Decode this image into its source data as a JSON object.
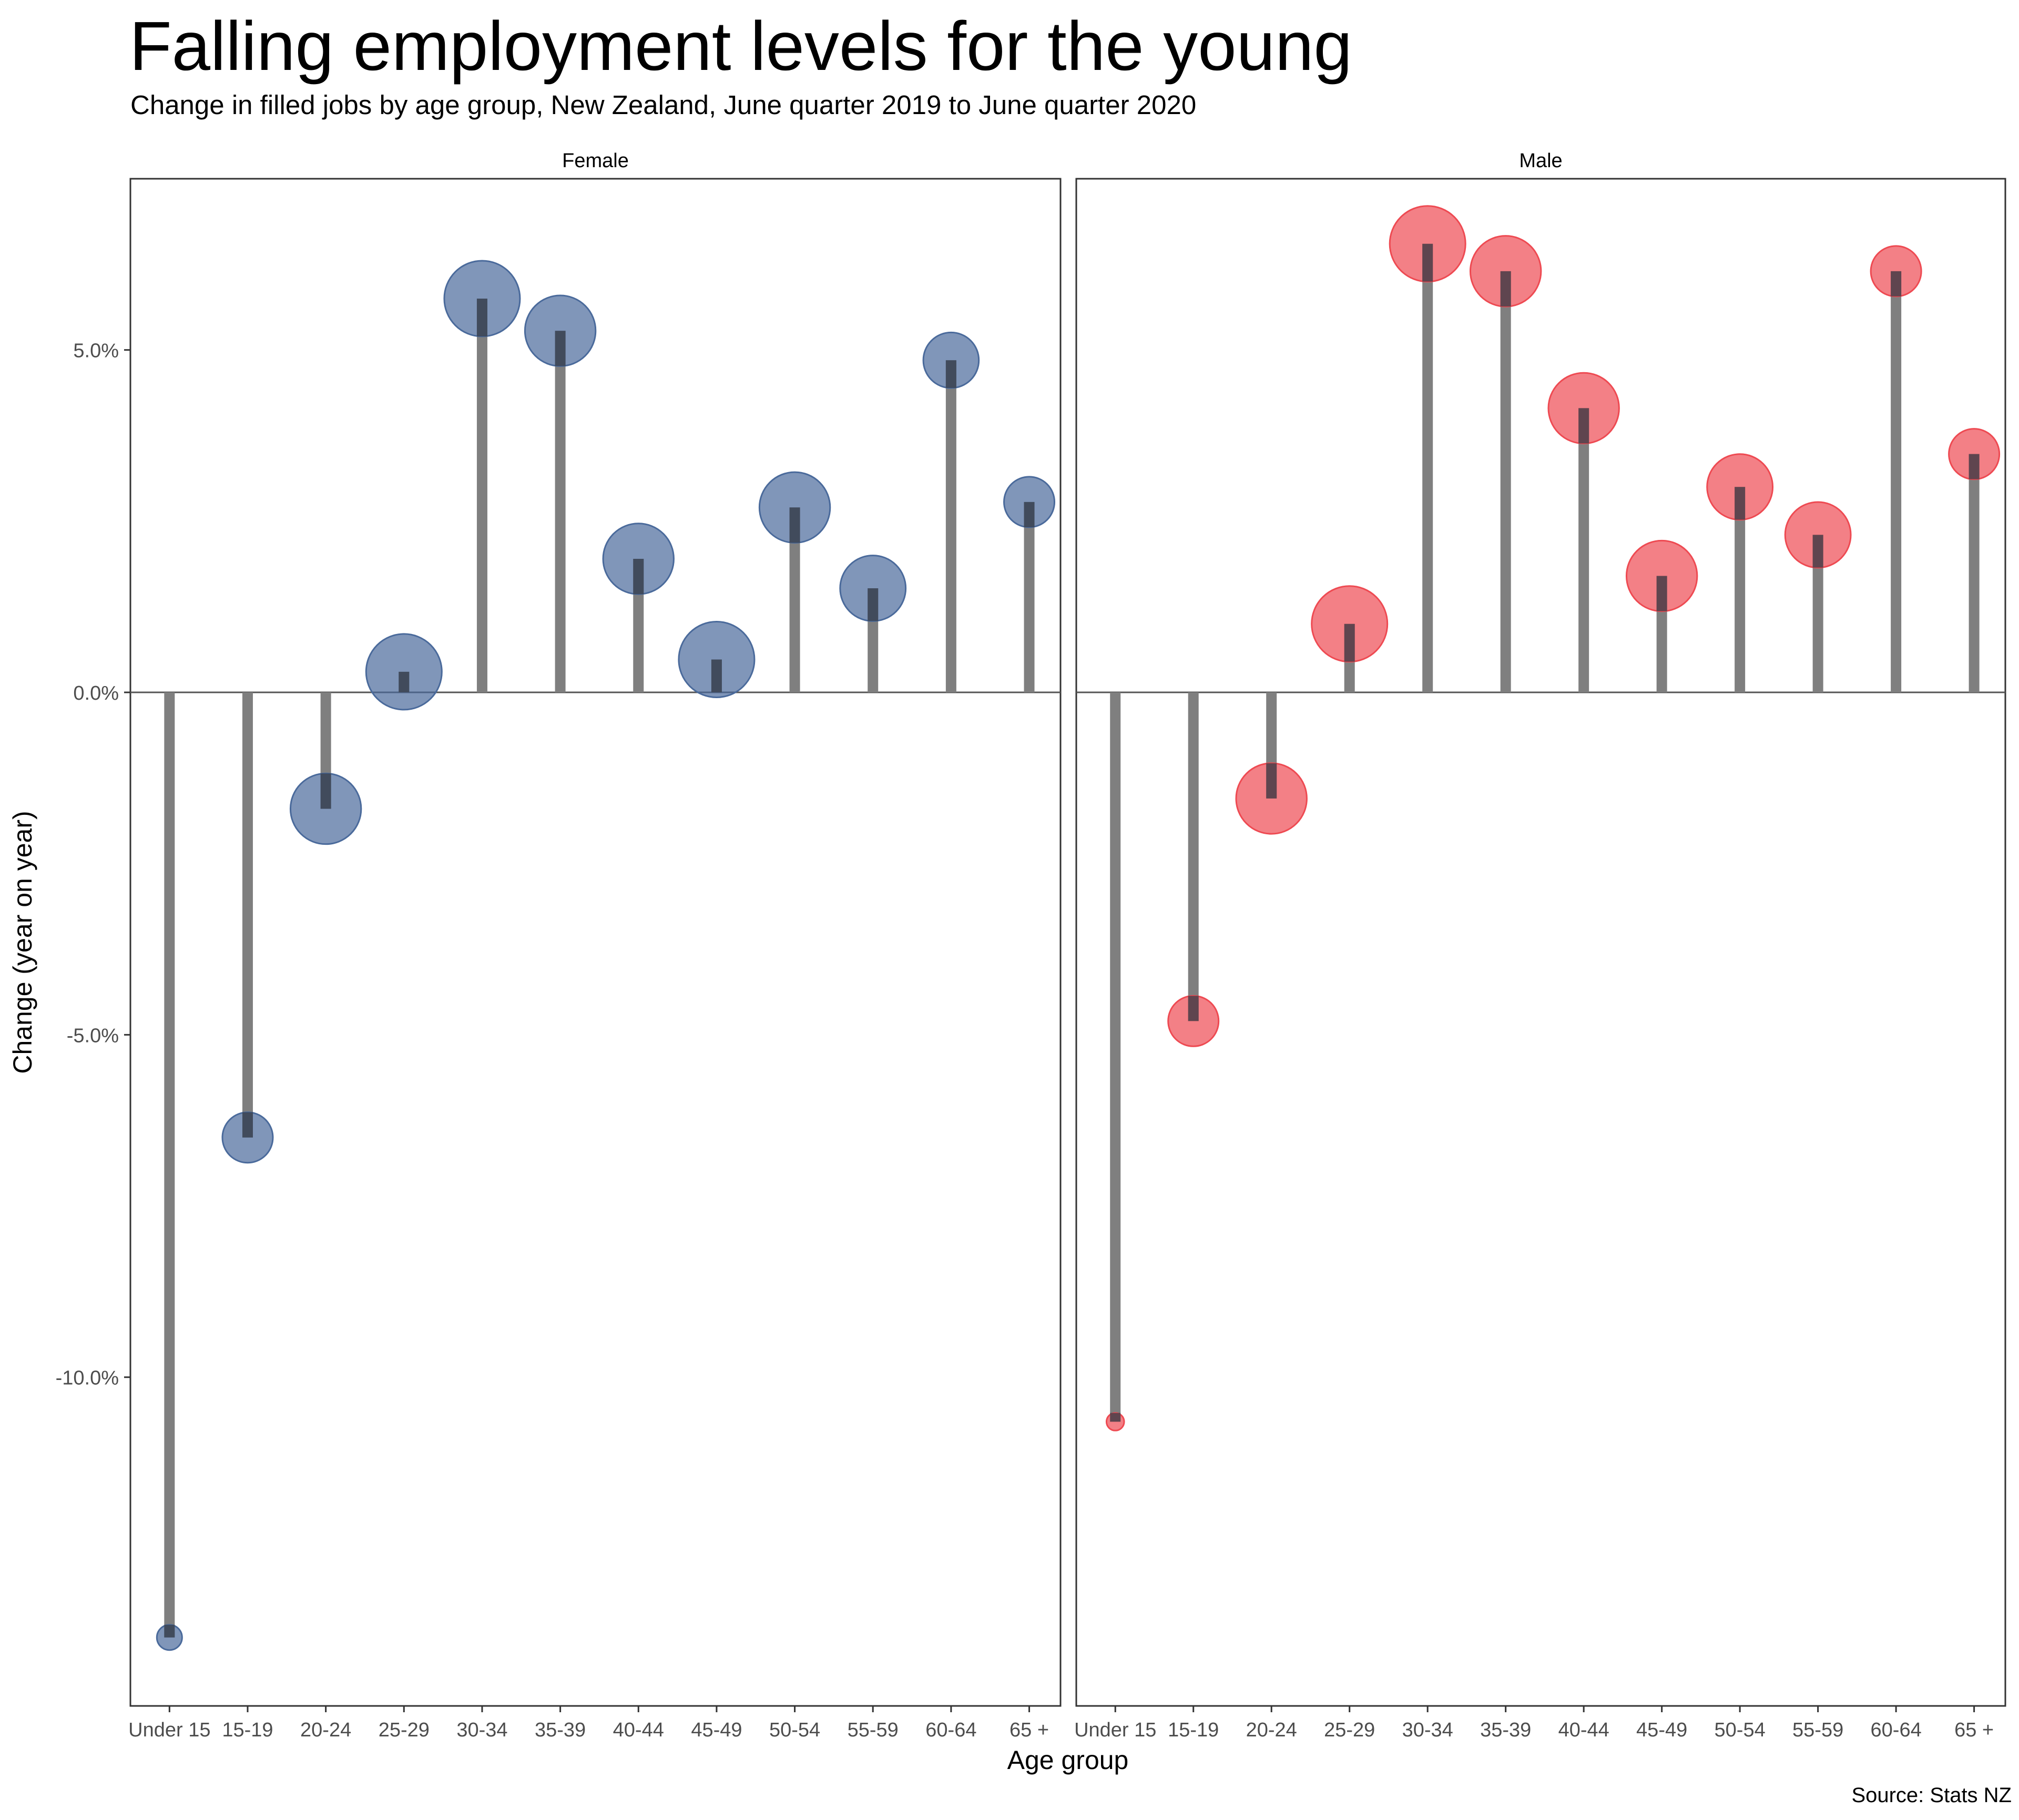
{
  "chart_data": {
    "type": "lollipop",
    "title": "Falling employment levels for the young",
    "subtitle": "Change in filled jobs by age group, New Zealand, June quarter 2019 to June quarter 2020",
    "xlabel": "Age group",
    "ylabel": "Change (year on year)",
    "caption": "Source: Stats NZ",
    "ylim": [
      -14.8,
      7.5
    ],
    "yticks": [
      5,
      0,
      -5,
      -10
    ],
    "ytick_labels": [
      "5.0%",
      "0.0%",
      "-5.0%",
      "-10.0%"
    ],
    "grid": false,
    "categories": [
      "Under 15",
      "15-19",
      "20-24",
      "25-29",
      "30-34",
      "35-39",
      "40-44",
      "45-49",
      "50-54",
      "55-59",
      "60-64",
      "65 +"
    ],
    "panels": [
      {
        "name": "Female",
        "color": "#4a6a9b",
        "values": [
          -13.8,
          -6.5,
          -1.7,
          0.3,
          5.75,
          5.28,
          1.95,
          0.48,
          2.7,
          1.52,
          4.85,
          2.78
        ],
        "point_size": [
          0.5,
          1.0,
          1.4,
          1.5,
          1.5,
          1.4,
          1.4,
          1.5,
          1.4,
          1.3,
          1.1,
          1.0
        ]
      },
      {
        "name": "Male",
        "color": "#ee4a52",
        "values": [
          -10.65,
          -4.8,
          -1.55,
          1.0,
          6.55,
          6.15,
          4.15,
          1.7,
          3.0,
          2.3,
          6.15,
          3.48
        ],
        "point_size": [
          0.35,
          1.0,
          1.4,
          1.5,
          1.5,
          1.4,
          1.4,
          1.4,
          1.3,
          1.3,
          1.0,
          1.0
        ]
      }
    ]
  },
  "colors": {
    "stem": "#7f7f7f",
    "stem_overlap": "#3a3f4a",
    "panel_border": "#333333",
    "zero_line": "#555555",
    "tick_text": "#4d4d4d"
  }
}
